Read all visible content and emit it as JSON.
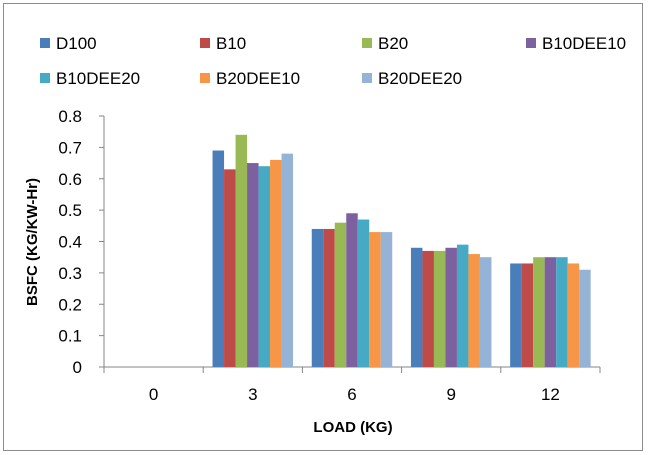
{
  "chart_data": {
    "type": "bar",
    "title": "",
    "xlabel": "LOAD (KG)",
    "ylabel": "BSFC (KG/KW-Hr)",
    "categories": [
      "0",
      "3",
      "6",
      "9",
      "12"
    ],
    "ylim": [
      0,
      0.8
    ],
    "yticks": [
      "0",
      "0.1",
      "0.2",
      "0.3",
      "0.4",
      "0.5",
      "0.6",
      "0.7",
      "0.8"
    ],
    "grid": false,
    "legend_position": "top",
    "series": [
      {
        "name": "D100",
        "color": "#4a7ebb",
        "values": [
          0,
          0.69,
          0.44,
          0.38,
          0.33
        ]
      },
      {
        "name": "B10",
        "color": "#be4b48",
        "values": [
          0,
          0.63,
          0.44,
          0.37,
          0.33
        ]
      },
      {
        "name": "B20",
        "color": "#98b954",
        "values": [
          0,
          0.74,
          0.46,
          0.37,
          0.35
        ]
      },
      {
        "name": "B10DEE10",
        "color": "#7d60a0",
        "values": [
          0,
          0.65,
          0.49,
          0.38,
          0.35
        ]
      },
      {
        "name": "B10DEE20",
        "color": "#46aac5",
        "values": [
          0,
          0.64,
          0.47,
          0.39,
          0.35
        ]
      },
      {
        "name": "B20DEE10",
        "color": "#f79646",
        "values": [
          0,
          0.66,
          0.43,
          0.36,
          0.33
        ]
      },
      {
        "name": "B20DEE20",
        "color": "#95b3d7",
        "values": [
          0,
          0.68,
          0.43,
          0.35,
          0.31
        ]
      }
    ]
  }
}
